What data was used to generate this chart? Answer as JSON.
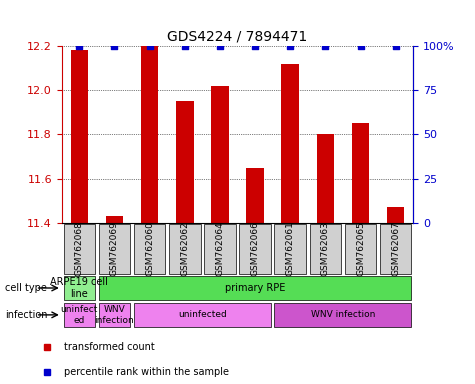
{
  "title": "GDS4224 / 7894471",
  "samples": [
    "GSM762068",
    "GSM762069",
    "GSM762060",
    "GSM762062",
    "GSM762064",
    "GSM762066",
    "GSM762061",
    "GSM762063",
    "GSM762065",
    "GSM762067"
  ],
  "transformed_counts": [
    12.18,
    11.43,
    12.2,
    11.95,
    12.02,
    11.65,
    12.12,
    11.8,
    11.85,
    11.47
  ],
  "percentile_ranks": [
    100,
    100,
    100,
    100,
    100,
    100,
    100,
    100,
    100,
    100
  ],
  "ylim": [
    11.4,
    12.2
  ],
  "yticks": [
    11.4,
    11.6,
    11.8,
    12.0,
    12.2
  ],
  "right_yticks": [
    0,
    25,
    50,
    75,
    100
  ],
  "right_ylim": [
    0,
    100
  ],
  "bar_color": "#cc0000",
  "dot_color": "#0000cc",
  "cell_type_groups": [
    {
      "label": "ARPE19 cell\nline",
      "start": 0,
      "end": 0,
      "color": "#90ee90"
    },
    {
      "label": "primary RPE",
      "start": 1,
      "end": 9,
      "color": "#55dd55"
    }
  ],
  "infection_groups": [
    {
      "label": "uninfect\ned",
      "start": 0,
      "end": 0,
      "color": "#ee82ee"
    },
    {
      "label": "WNV\ninfection",
      "start": 1,
      "end": 1,
      "color": "#ee82ee"
    },
    {
      "label": "uninfected",
      "start": 2,
      "end": 5,
      "color": "#ee82ee"
    },
    {
      "label": "WNV infection",
      "start": 6,
      "end": 9,
      "color": "#cc55cc"
    }
  ],
  "legend_items": [
    {
      "label": "transformed count",
      "color": "#cc0000",
      "marker": "s"
    },
    {
      "label": "percentile rank within the sample",
      "color": "#0000cc",
      "marker": "s"
    }
  ]
}
